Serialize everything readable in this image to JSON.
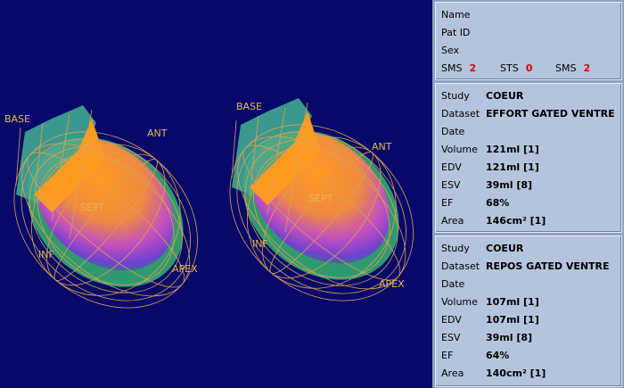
{
  "views": [
    {
      "base": "BASE",
      "ant": "ANT",
      "sept": "SEPT",
      "inf": "INF",
      "apex": "APEX"
    },
    {
      "base": "BASE",
      "ant": "ANT",
      "sept": "SEPT",
      "inf": "INF",
      "apex": "APEX"
    }
  ],
  "patient": {
    "rows": [
      "Name",
      "Pat ID",
      "Sex"
    ],
    "scores": [
      {
        "label": "SMS",
        "value": "2"
      },
      {
        "label": "STS",
        "value": "0"
      },
      {
        "label": "SMS",
        "value": "2"
      }
    ]
  },
  "studies": [
    {
      "rows": [
        {
          "label": "Study",
          "value": "COEUR"
        },
        {
          "label": "Dataset",
          "value": "EFFORT GATED VENTRE"
        },
        {
          "label": "Date"
        },
        {
          "label": "Volume",
          "value": "121ml [1]"
        },
        {
          "label": "EDV",
          "value": "121ml [1]"
        },
        {
          "label": "ESV",
          "value": "39ml [8]"
        },
        {
          "label": "EF",
          "value": "68%"
        },
        {
          "label": "Area",
          "value": "146cm² [1]"
        }
      ]
    },
    {
      "rows": [
        {
          "label": "Study",
          "value": "COEUR"
        },
        {
          "label": "Dataset",
          "value": "REPOS GATED VENTRE"
        },
        {
          "label": "Date"
        },
        {
          "label": "Volume",
          "value": "107ml [1]"
        },
        {
          "label": "EDV",
          "value": "107ml [1]"
        },
        {
          "label": "ESV",
          "value": "39ml [8]"
        },
        {
          "label": "EF",
          "value": "64%"
        },
        {
          "label": "Area",
          "value": "140cm² [1]"
        }
      ]
    }
  ]
}
